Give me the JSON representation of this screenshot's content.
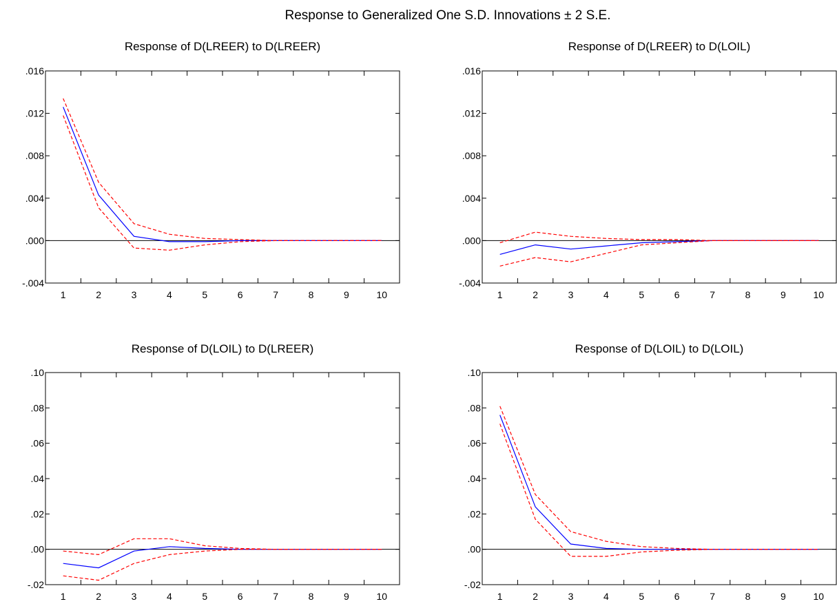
{
  "suptitle": "Response to Generalized One S.D. Innovations ± 2 S.E.",
  "colors": {
    "response": "#0000ff",
    "bands": "#ff0000",
    "axis": "#000000",
    "zero": "#000000"
  },
  "chart_data": [
    {
      "type": "line",
      "title": "Response of D(LREER) to D(LREER)",
      "x": [
        1,
        2,
        3,
        4,
        5,
        6,
        7,
        8,
        9,
        10
      ],
      "ylim": [
        -0.004,
        0.016
      ],
      "yticks": [
        -0.004,
        0.0,
        0.004,
        0.008,
        0.012,
        0.016
      ],
      "ytick_labels": [
        "-.004",
        ".000",
        ".004",
        ".008",
        ".012",
        ".016"
      ],
      "series": [
        {
          "role": "response",
          "values": [
            0.0126,
            0.0043,
            0.0004,
            -0.0001,
            -0.0001,
            0.0,
            0.0,
            0.0,
            0.0,
            0.0
          ]
        },
        {
          "role": "upper",
          "values": [
            0.0134,
            0.0055,
            0.0016,
            0.0006,
            0.0002,
            0.0001,
            0.0,
            0.0,
            0.0,
            0.0
          ]
        },
        {
          "role": "lower",
          "values": [
            0.0118,
            0.0031,
            -0.0007,
            -0.0009,
            -0.0004,
            -0.0001,
            0.0,
            0.0,
            0.0,
            0.0
          ]
        }
      ],
      "zero_line": true,
      "grid": false
    },
    {
      "type": "line",
      "title": "Response of D(LREER) to D(LOIL)",
      "x": [
        1,
        2,
        3,
        4,
        5,
        6,
        7,
        8,
        9,
        10
      ],
      "ylim": [
        -0.004,
        0.016
      ],
      "yticks": [
        -0.004,
        0.0,
        0.004,
        0.008,
        0.012,
        0.016
      ],
      "ytick_labels": [
        "-.004",
        ".000",
        ".004",
        ".008",
        ".012",
        ".016"
      ],
      "series": [
        {
          "role": "response",
          "values": [
            -0.0013,
            -0.0004,
            -0.0008,
            -0.0005,
            -0.0002,
            -0.0001,
            0.0,
            0.0,
            0.0,
            0.0
          ]
        },
        {
          "role": "upper",
          "values": [
            -0.0002,
            0.0008,
            0.0004,
            0.0002,
            0.0001,
            0.0001,
            0.0,
            0.0,
            0.0,
            0.0
          ]
        },
        {
          "role": "lower",
          "values": [
            -0.0024,
            -0.0016,
            -0.002,
            -0.0012,
            -0.0004,
            -0.0002,
            0.0,
            0.0,
            0.0,
            0.0
          ]
        }
      ],
      "zero_line": true,
      "grid": false
    },
    {
      "type": "line",
      "title": "Response of D(LOIL) to D(LREER)",
      "x": [
        1,
        2,
        3,
        4,
        5,
        6,
        7,
        8,
        9,
        10
      ],
      "ylim": [
        -0.02,
        0.1
      ],
      "yticks": [
        -0.02,
        0.0,
        0.02,
        0.04,
        0.06,
        0.08,
        0.1
      ],
      "ytick_labels": [
        "-.02",
        ".00",
        ".02",
        ".04",
        ".06",
        ".08",
        ".10"
      ],
      "series": [
        {
          "role": "response",
          "values": [
            -0.008,
            -0.0105,
            -0.001,
            0.0015,
            0.0005,
            0.0,
            0.0,
            0.0,
            0.0,
            0.0
          ]
        },
        {
          "role": "upper",
          "values": [
            -0.001,
            -0.003,
            0.006,
            0.006,
            0.002,
            0.0005,
            0.0,
            0.0,
            0.0,
            0.0
          ]
        },
        {
          "role": "lower",
          "values": [
            -0.015,
            -0.0175,
            -0.008,
            -0.003,
            -0.001,
            0.0,
            0.0,
            0.0,
            0.0,
            0.0
          ]
        }
      ],
      "zero_line": true,
      "grid": false
    },
    {
      "type": "line",
      "title": "Response of D(LOIL) to D(LOIL)",
      "x": [
        1,
        2,
        3,
        4,
        5,
        6,
        7,
        8,
        9,
        10
      ],
      "ylim": [
        -0.02,
        0.1
      ],
      "yticks": [
        -0.02,
        0.0,
        0.02,
        0.04,
        0.06,
        0.08,
        0.1
      ],
      "ytick_labels": [
        "-.02",
        ".00",
        ".02",
        ".04",
        ".06",
        ".08",
        ".10"
      ],
      "series": [
        {
          "role": "response",
          "values": [
            0.076,
            0.024,
            0.003,
            0.0005,
            0.0,
            0.0,
            0.0,
            0.0,
            0.0,
            0.0
          ]
        },
        {
          "role": "upper",
          "values": [
            0.081,
            0.031,
            0.01,
            0.0045,
            0.0015,
            0.0005,
            0.0,
            0.0,
            0.0,
            0.0
          ]
        },
        {
          "role": "lower",
          "values": [
            0.071,
            0.017,
            -0.004,
            -0.004,
            -0.0015,
            -0.0005,
            0.0,
            0.0,
            0.0,
            0.0
          ]
        }
      ],
      "zero_line": true,
      "grid": false
    }
  ]
}
